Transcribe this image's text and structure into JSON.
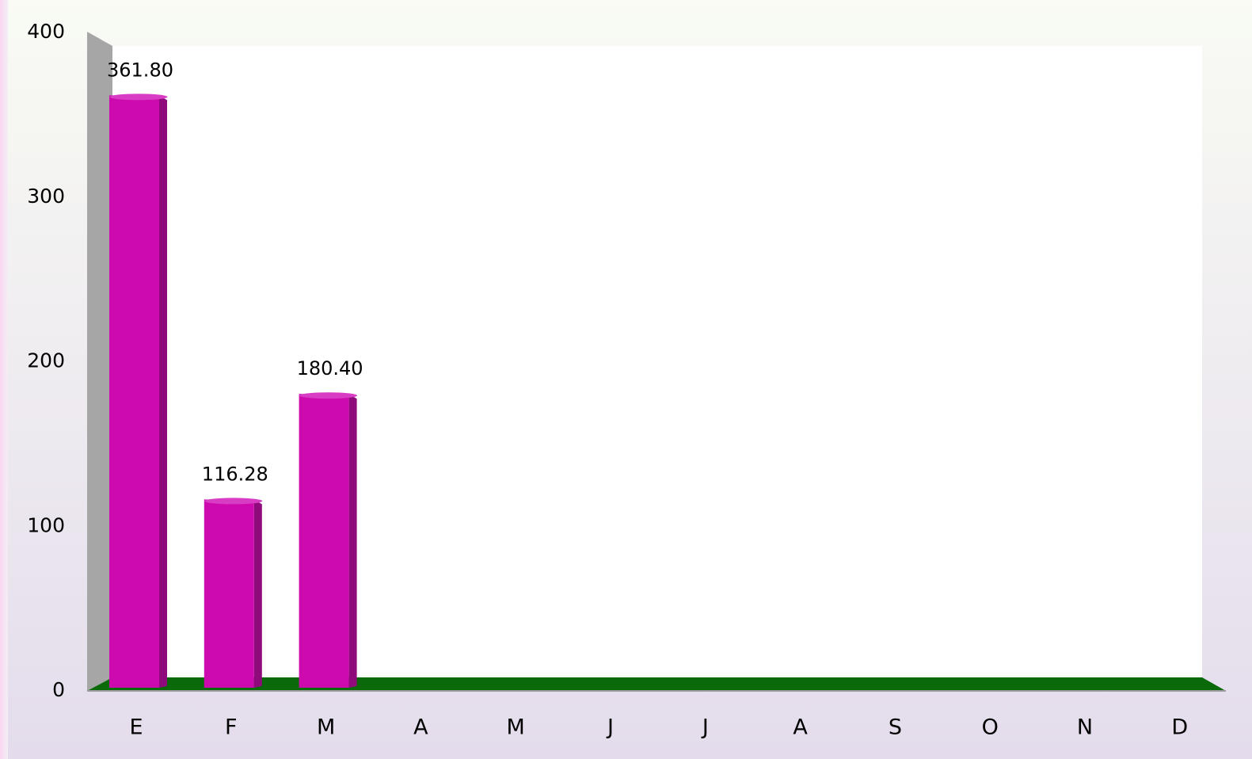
{
  "chart_data": {
    "type": "bar3d",
    "categories": [
      "E",
      "F",
      "M",
      "A",
      "M",
      "J",
      "J",
      "A",
      "S",
      "O",
      "N",
      "D"
    ],
    "values": [
      361.8,
      116.28,
      180.4,
      null,
      null,
      null,
      null,
      null,
      null,
      null,
      null,
      null
    ],
    "value_labels": [
      "361.80",
      "116.28",
      "180.40",
      null,
      null,
      null,
      null,
      null,
      null,
      null,
      null,
      null
    ],
    "color": "#cc0aae",
    "floor_color": "#0a6a0a",
    "wall_color": "#a6a6a6",
    "ylim": [
      0,
      400
    ],
    "yticks": [
      0,
      100,
      200,
      300,
      400
    ],
    "grid": false
  }
}
